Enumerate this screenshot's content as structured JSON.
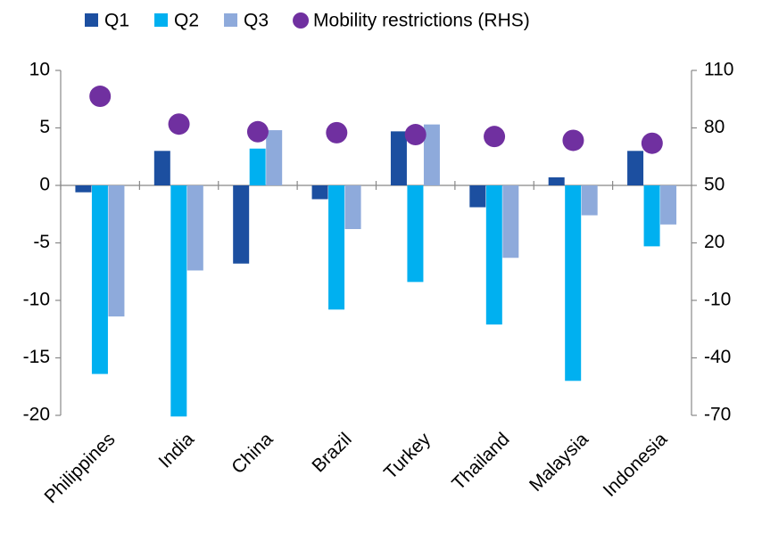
{
  "chart_data": {
    "type": "bar",
    "categories": [
      "Philippines",
      "India",
      "China",
      "Brazil",
      "Turkey",
      "Thailand",
      "Malaysia",
      "Indonesia"
    ],
    "series": [
      {
        "name": "Q1",
        "color": "#1c4fa0",
        "values": [
          -0.6,
          3.0,
          -6.8,
          -1.2,
          4.7,
          -1.9,
          0.7,
          3.0
        ]
      },
      {
        "name": "Q2",
        "color": "#00b0f0",
        "values": [
          -16.4,
          -20.1,
          3.2,
          -10.8,
          -8.4,
          -12.1,
          -17.0,
          -5.3
        ]
      },
      {
        "name": "Q3",
        "color": "#8eaadb",
        "values": [
          -11.4,
          -7.4,
          4.8,
          -3.8,
          5.3,
          -6.3,
          -2.6,
          -3.4
        ]
      },
      {
        "name": "Mobility restrictions (RHS)",
        "color": "#7030a0",
        "axis": "y2",
        "type": "scatter",
        "values": [
          96.5,
          82,
          78,
          77.5,
          76.5,
          75.5,
          73.5,
          72
        ]
      }
    ],
    "ylim": [
      -20,
      10
    ],
    "yticks": [
      -20,
      -15,
      -10,
      -5,
      0,
      5,
      10
    ],
    "y2lim": [
      -70,
      110
    ],
    "y2ticks": [
      -70,
      -40,
      -10,
      20,
      50,
      80,
      110
    ],
    "legend": "top"
  }
}
